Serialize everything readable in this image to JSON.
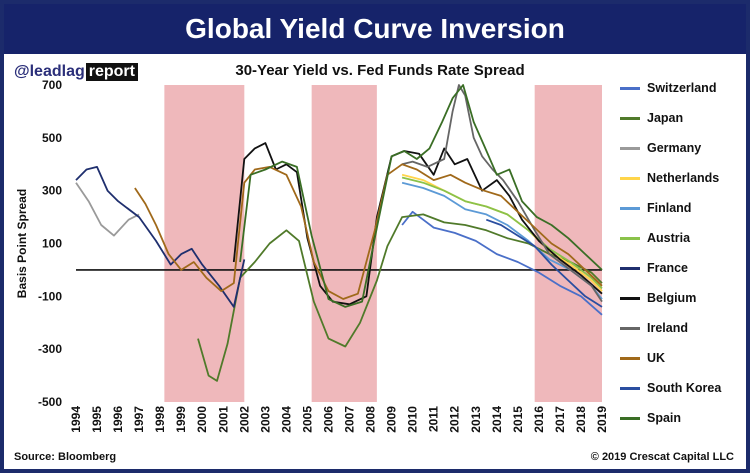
{
  "header": {
    "title": "Global Yield Curve Inversion"
  },
  "logo": {
    "at": "@",
    "lead": "leadlag",
    "report": "report"
  },
  "footer": {
    "source": "Source: Bloomberg",
    "copyright": "© 2019 Crescat Capital LLC"
  },
  "chart_data": {
    "type": "line",
    "title": "30-Year Yield vs. Fed Funds Rate Spread",
    "xlabel": "",
    "ylabel": "Basis Point Spread",
    "xlim": [
      1994,
      2019
    ],
    "ylim": [
      -500,
      700
    ],
    "x_ticks": [
      "1994",
      "1995",
      "1996",
      "1997",
      "1998",
      "1999",
      "2000",
      "2001",
      "2002",
      "2003",
      "2004",
      "2005",
      "2006",
      "2007",
      "2008",
      "2009",
      "2010",
      "2011",
      "2012",
      "2013",
      "2014",
      "2015",
      "2016",
      "2017",
      "2018",
      "2019"
    ],
    "y_ticks": [
      700,
      500,
      300,
      100,
      -100,
      -300,
      -500
    ],
    "zero_line": 0,
    "shaded_periods": [
      [
        1998.2,
        2002.0
      ],
      [
        2005.2,
        2008.3
      ],
      [
        2015.8,
        2019.0
      ]
    ],
    "shade_color": "#efb8bb",
    "grid": false,
    "legend_position": "right",
    "series": [
      {
        "name": "Switzerland",
        "color": "#4a6fc8",
        "x": [
          2009.5,
          2010,
          2010.5,
          2011,
          2012,
          2013,
          2014,
          2015,
          2016,
          2017,
          2018,
          2019
        ],
        "y": [
          170,
          220,
          190,
          160,
          140,
          110,
          60,
          30,
          -10,
          -60,
          -100,
          -170
        ]
      },
      {
        "name": "Japan",
        "color": "#507a2a",
        "x": [
          1999.8,
          2000.3,
          2000.7,
          2001.2,
          2001.8,
          2002.5,
          2003.2,
          2004.0,
          2004.6,
          2005.3,
          2006.0,
          2006.8,
          2007.5,
          2008.3,
          2008.8,
          2009.5,
          2010.5,
          2011.5,
          2012.5,
          2013.5,
          2014.5,
          2015.5,
          2016.5,
          2017.5,
          2018.5,
          2019
        ],
        "y": [
          -260,
          -400,
          -420,
          -280,
          -30,
          30,
          100,
          150,
          110,
          -120,
          -260,
          -290,
          -200,
          -40,
          90,
          200,
          210,
          180,
          170,
          150,
          120,
          100,
          60,
          30,
          -10,
          -50
        ]
      },
      {
        "name": "Germany",
        "color": "#9a9a9a",
        "x": [
          1994,
          1994.6,
          1995.2,
          1995.8,
          1996.5,
          1997.0
        ],
        "y": [
          330,
          260,
          170,
          130,
          190,
          210
        ]
      },
      {
        "name": "Netherlands",
        "color": "#ffd54a",
        "x": [
          2009.5,
          2010.5,
          2011.5,
          2012.5,
          2013.5,
          2014.5,
          2015.5,
          2016.5,
          2017.5,
          2018.5,
          2019
        ],
        "y": [
          360,
          340,
          300,
          260,
          240,
          210,
          150,
          70,
          20,
          -40,
          -80
        ]
      },
      {
        "name": "Finland",
        "color": "#5c9ad6",
        "x": [
          2009.5,
          2010.5,
          2011.5,
          2012.5,
          2013.5,
          2014.5,
          2015.5,
          2016.5,
          2017.5,
          2018.5,
          2019
        ],
        "y": [
          330,
          310,
          280,
          230,
          210,
          170,
          110,
          40,
          0,
          -60,
          -110
        ]
      },
      {
        "name": "Austria",
        "color": "#8ac24a",
        "x": [
          2009.5,
          2010.5,
          2011.5,
          2012.5,
          2013.5,
          2014.5,
          2015.5,
          2016.5,
          2017.5,
          2018.5,
          2019
        ],
        "y": [
          350,
          330,
          300,
          260,
          240,
          210,
          150,
          80,
          30,
          -30,
          -70
        ]
      },
      {
        "name": "France",
        "color": "#1f2f6e",
        "x": [
          1994,
          1994.5,
          1995.0,
          1995.5,
          1996.0,
          1997.0,
          1997.8,
          1998.5,
          1999.0,
          1999.5,
          2000.0,
          2000.8,
          2001.5,
          2002.0
        ],
        "y": [
          340,
          380,
          390,
          300,
          260,
          200,
          110,
          20,
          60,
          80,
          20,
          -60,
          -140,
          40
        ]
      },
      {
        "name": "Belgium",
        "color": "#111111",
        "x": [
          2001.5,
          2002.0,
          2002.5,
          2003.0,
          2003.5,
          2004.0,
          2004.5,
          2005.0,
          2005.6,
          2006.2,
          2007.0,
          2007.8,
          2008.3,
          2009.0,
          2009.6,
          2010.3,
          2011.0,
          2011.5,
          2012.0,
          2012.6,
          2013.3,
          2014.0,
          2014.6,
          2015.2,
          2016.0,
          2017.0,
          2018.0,
          2019
        ],
        "y": [
          30,
          420,
          460,
          480,
          380,
          400,
          370,
          120,
          -60,
          -120,
          -130,
          -100,
          200,
          430,
          450,
          440,
          360,
          460,
          400,
          420,
          300,
          340,
          280,
          190,
          110,
          40,
          -20,
          -90
        ]
      },
      {
        "name": "Ireland",
        "color": "#666666",
        "x": [
          2009.5,
          2010.0,
          2010.7,
          2011.5,
          2011.9,
          2012.2,
          2012.5,
          2012.9,
          2013.3,
          2013.8,
          2014.3,
          2015.0,
          2015.8,
          2016.5,
          2017.5,
          2018.5,
          2019
        ],
        "y": [
          400,
          410,
          390,
          420,
          600,
          700,
          660,
          500,
          430,
          380,
          340,
          260,
          150,
          60,
          0,
          -60,
          -120
        ]
      },
      {
        "name": "UK",
        "color": "#a0691a",
        "x": [
          1996.8,
          1997.3,
          1997.8,
          1998.4,
          1999.0,
          1999.6,
          2000.2,
          2000.9,
          2001.5,
          2002.0,
          2002.5,
          2003.2,
          2004.0,
          2004.7,
          2005.3,
          2006.0,
          2006.7,
          2007.4,
          2008.2,
          2008.8,
          2009.5,
          2010.2,
          2011.0,
          2011.8,
          2012.5,
          2013.4,
          2014.2,
          2015.0,
          2015.8,
          2016.6,
          2017.4,
          2018.2,
          2019
        ],
        "y": [
          310,
          250,
          170,
          60,
          0,
          30,
          -30,
          -80,
          -50,
          330,
          380,
          390,
          360,
          240,
          30,
          -80,
          -110,
          -90,
          150,
          360,
          400,
          380,
          340,
          360,
          330,
          300,
          280,
          220,
          160,
          100,
          60,
          0,
          -60
        ]
      },
      {
        "name": "South Korea",
        "color": "#2a4ea0",
        "x": [
          2013.5,
          2014.2,
          2015.0,
          2015.8,
          2016.6,
          2017.4,
          2018.2,
          2019
        ],
        "y": [
          190,
          170,
          130,
          90,
          20,
          -40,
          -100,
          -140
        ]
      },
      {
        "name": "Spain",
        "color": "#3a6e25",
        "x": [
          2001.8,
          2002.3,
          2003.0,
          2003.8,
          2004.5,
          2005.2,
          2006.0,
          2006.8,
          2007.6,
          2008.3,
          2009.0,
          2009.6,
          2010.2,
          2010.8,
          2011.4,
          2011.9,
          2012.4,
          2012.9,
          2013.4,
          2014.0,
          2014.6,
          2015.2,
          2015.9,
          2016.6,
          2017.4,
          2018.2,
          2019
        ],
        "y": [
          30,
          360,
          380,
          410,
          390,
          130,
          -110,
          -140,
          -120,
          160,
          430,
          450,
          420,
          460,
          560,
          650,
          700,
          560,
          470,
          360,
          380,
          260,
          200,
          170,
          120,
          60,
          0
        ]
      }
    ]
  }
}
